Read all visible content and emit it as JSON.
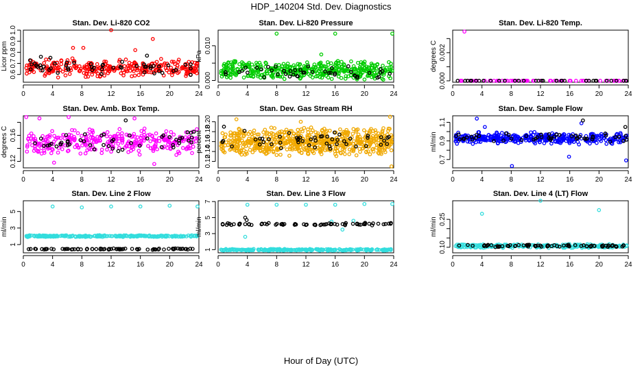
{
  "figure_title": "HDP_140204  Std. Dev. Diagnostics",
  "x_axis_label": "Hour of Day (UTC)",
  "chart_data": [
    {
      "type": "scatter",
      "title": "Stan. Dev. Li-820 CO2",
      "ylabel": "Licor ppm",
      "xlim": [
        0,
        24
      ],
      "ylim": [
        0.53,
        1.0
      ],
      "x_ticks": [
        0,
        4,
        8,
        12,
        16,
        20,
        24
      ],
      "y_ticks": [
        0.6,
        0.7,
        0.8,
        0.9,
        1.0
      ],
      "y_tick_labels": [
        "0.6",
        "0.7",
        "0.8",
        "0.9",
        "1.0"
      ],
      "grid": false,
      "legend": "none",
      "series": [
        {
          "color": "#ff0000",
          "band": [
            0.57,
            0.75
          ],
          "n": 300,
          "outliers": [
            [
              8.2,
              0.84
            ],
            [
              12,
              1.0
            ],
            [
              17.7,
              0.92
            ],
            [
              6.8,
              0.84
            ],
            [
              15.3,
              0.82
            ]
          ]
        },
        {
          "color": "#000000",
          "band": [
            0.59,
            0.74
          ],
          "n": 50,
          "outliers": [
            [
              2.4,
              0.76
            ],
            [
              3.7,
              0.75
            ],
            [
              16.9,
              0.77
            ]
          ]
        }
      ]
    },
    {
      "type": "scatter",
      "title": "Stan. Dev. Li-820 Pressure",
      "ylabel": "kPa",
      "xlim": [
        0,
        24
      ],
      "ylim": [
        -0.0005,
        0.0145
      ],
      "x_ticks": [
        0,
        4,
        8,
        12,
        16,
        20,
        24
      ],
      "y_ticks": [
        0.0,
        0.005,
        0.01
      ],
      "y_tick_labels": [
        "0.000",
        "",
        "0.010"
      ],
      "grid": false,
      "legend": "none",
      "series": [
        {
          "color": "#00cc00",
          "band": [
            0.0,
            0.0058
          ],
          "n": 420,
          "outliers": [
            [
              8,
              0.0135
            ],
            [
              16,
              0.0135
            ],
            [
              23.8,
              0.0135
            ],
            [
              14.1,
              0.0075
            ]
          ]
        },
        {
          "color": "#000000",
          "band": [
            0.0,
            0.0045
          ],
          "n": 45,
          "outliers": []
        }
      ]
    },
    {
      "type": "scatter",
      "title": "Stan. Dev. Li-820 Temp.",
      "ylabel": "degrees C",
      "xlim": [
        0,
        24
      ],
      "ylim": [
        -0.0001,
        0.0036
      ],
      "x_ticks": [
        0,
        4,
        8,
        12,
        16,
        20,
        24
      ],
      "y_ticks": [
        0.0,
        0.001,
        0.002,
        0.003
      ],
      "y_tick_labels": [
        "0.000",
        "",
        "0.002",
        ""
      ],
      "grid": false,
      "legend": "none",
      "series": [
        {
          "color": "#ff00ff",
          "band": [
            0.0,
            0.0
          ],
          "n": 70,
          "outliers": [
            [
              1.6,
              0.0035
            ]
          ]
        },
        {
          "color": "#000000",
          "band": [
            0.0,
            0.0
          ],
          "n": 35,
          "outliers": []
        }
      ]
    },
    {
      "type": "scatter",
      "title": "Stan. Dev. Amb. Box Temp.",
      "ylabel": "degrees C",
      "xlim": [
        0,
        24
      ],
      "ylim": [
        0.11,
        0.19
      ],
      "x_ticks": [
        0,
        4,
        8,
        12,
        16,
        20,
        24
      ],
      "y_ticks": [
        0.12,
        0.14,
        0.16,
        0.18
      ],
      "y_tick_labels": [
        "0.12",
        "",
        "0.16",
        ""
      ],
      "grid": false,
      "legend": "none",
      "series": [
        {
          "color": "#ff00ff",
          "band": [
            0.128,
            0.172
          ],
          "n": 320,
          "outliers": [
            [
              0.4,
              0.188
            ],
            [
              2.2,
              0.186
            ],
            [
              6.2,
              0.188
            ],
            [
              17.9,
              0.116
            ],
            [
              15.2,
              0.186
            ],
            [
              4.2,
              0.118
            ]
          ]
        },
        {
          "color": "#000000",
          "band": [
            0.13,
            0.168
          ],
          "n": 50,
          "outliers": [
            [
              14,
              0.183
            ]
          ]
        }
      ]
    },
    {
      "type": "scatter",
      "title": "Stan. Dev. Gas Stream RH",
      "ylabel": "percent",
      "xlim": [
        0,
        24
      ],
      "ylim": [
        0.107,
        0.212
      ],
      "x_ticks": [
        0,
        4,
        8,
        12,
        16,
        20,
        24
      ],
      "y_ticks": [
        0.12,
        0.14,
        0.16,
        0.18,
        0.2
      ],
      "y_tick_labels": [
        "0.12",
        "0.14",
        "0.16",
        "0.18",
        "0.20"
      ],
      "grid": false,
      "legend": "none",
      "series": [
        {
          "color": "#f0a800",
          "band": [
            0.13,
            0.19
          ],
          "n": 650,
          "outliers": [
            [
              23.5,
              0.21
            ],
            [
              2.5,
              0.205
            ],
            [
              23.7,
              0.11
            ],
            [
              11.3,
              0.2
            ]
          ]
        },
        {
          "color": "#000000",
          "band": [
            0.14,
            0.185
          ],
          "n": 50,
          "outliers": [
            [
              0.8,
              0.19
            ]
          ]
        }
      ]
    },
    {
      "type": "scatter",
      "title": "Stan. Dev. Sample Flow",
      "ylabel": "ml/min",
      "xlim": [
        0,
        24
      ],
      "ylim": [
        0.61,
        1.17
      ],
      "x_ticks": [
        0,
        4,
        8,
        12,
        16,
        20,
        24
      ],
      "y_ticks": [
        0.7,
        0.8,
        0.9,
        1.0,
        1.1
      ],
      "y_tick_labels": [
        "0.7",
        "",
        "0.9",
        "",
        "1.1"
      ],
      "grid": false,
      "legend": "none",
      "series": [
        {
          "color": "#0000ff",
          "band": [
            0.86,
            1.0
          ],
          "n": 380,
          "outliers": [
            [
              8.1,
              0.63
            ],
            [
              23.7,
              0.69
            ],
            [
              3.3,
              1.14
            ],
            [
              17.6,
              1.09
            ],
            [
              4.4,
              1.05
            ],
            [
              15.9,
              0.73
            ]
          ]
        },
        {
          "color": "#000000",
          "band": [
            0.88,
            0.99
          ],
          "n": 50,
          "outliers": [
            [
              17.8,
              1.12
            ],
            [
              23.6,
              1.05
            ]
          ]
        }
      ]
    },
    {
      "type": "scatter",
      "title": "Stan. Dev. Line 2 Flow",
      "ylabel": "ml/min",
      "xlim": [
        0,
        24
      ],
      "ylim": [
        0.0,
        6.3
      ],
      "x_ticks": [
        0,
        4,
        8,
        12,
        16,
        20,
        24
      ],
      "y_ticks": [
        1,
        3,
        5
      ],
      "y_tick_labels": [
        "1",
        "3",
        "5"
      ],
      "grid": false,
      "legend": "none",
      "series": [
        {
          "color": "#33dddd",
          "band": [
            1.9,
            2.15
          ],
          "n": 260,
          "outliers": [
            [
              4,
              5.6
            ],
            [
              8,
              5.5
            ],
            [
              12,
              5.6
            ],
            [
              16,
              5.6
            ],
            [
              20,
              5.7
            ],
            [
              23.8,
              5.6
            ]
          ]
        },
        {
          "color": "#000000",
          "band": [
            0.35,
            0.55
          ],
          "n": 80,
          "outliers": []
        }
      ]
    },
    {
      "type": "scatter",
      "title": "Stan. Dev. Line 3 Flow",
      "ylabel": "ml/min",
      "xlim": [
        0,
        24
      ],
      "ylim": [
        0.6,
        7.1
      ],
      "x_ticks": [
        0,
        4,
        8,
        12,
        16,
        20,
        24
      ],
      "y_ticks": [
        1,
        3,
        5,
        7
      ],
      "y_tick_labels": [
        "1",
        "3",
        "5",
        "7"
      ],
      "grid": false,
      "legend": "none",
      "series": [
        {
          "color": "#33dddd",
          "band": [
            0.85,
            1.1
          ],
          "n": 260,
          "outliers": [
            [
              4,
              6.6
            ],
            [
              8,
              6.6
            ],
            [
              12,
              6.6
            ],
            [
              16,
              6.6
            ],
            [
              20,
              6.7
            ],
            [
              23.8,
              6.7
            ],
            [
              3.7,
              2.6
            ],
            [
              15.5,
              4.5
            ],
            [
              17,
              3.5
            ],
            [
              18.5,
              4.6
            ]
          ]
        },
        {
          "color": "#000000",
          "band": [
            4.0,
            4.35
          ],
          "n": 70,
          "outliers": [
            [
              3.7,
              5.0
            ],
            [
              3.9,
              4.7
            ]
          ]
        }
      ]
    },
    {
      "type": "scatter",
      "title": "Stan. Dev. Line 4 (LT) Flow",
      "ylabel": "ml/min",
      "xlim": [
        0,
        24
      ],
      "ylim": [
        0.07,
        0.35
      ],
      "x_ticks": [
        0,
        4,
        8,
        12,
        16,
        20,
        24
      ],
      "y_ticks": [
        0.1,
        0.15,
        0.2,
        0.25
      ],
      "y_tick_labels": [
        "0.10",
        "",
        "",
        "0.25"
      ],
      "grid": false,
      "legend": "none",
      "series": [
        {
          "color": "#33dddd",
          "band": [
            0.095,
            0.118
          ],
          "n": 260,
          "outliers": [
            [
              4,
              0.28
            ],
            [
              12,
              0.35
            ],
            [
              20,
              0.3
            ]
          ]
        },
        {
          "color": "#000000",
          "band": [
            0.1,
            0.115
          ],
          "n": 75,
          "outliers": []
        }
      ]
    }
  ]
}
